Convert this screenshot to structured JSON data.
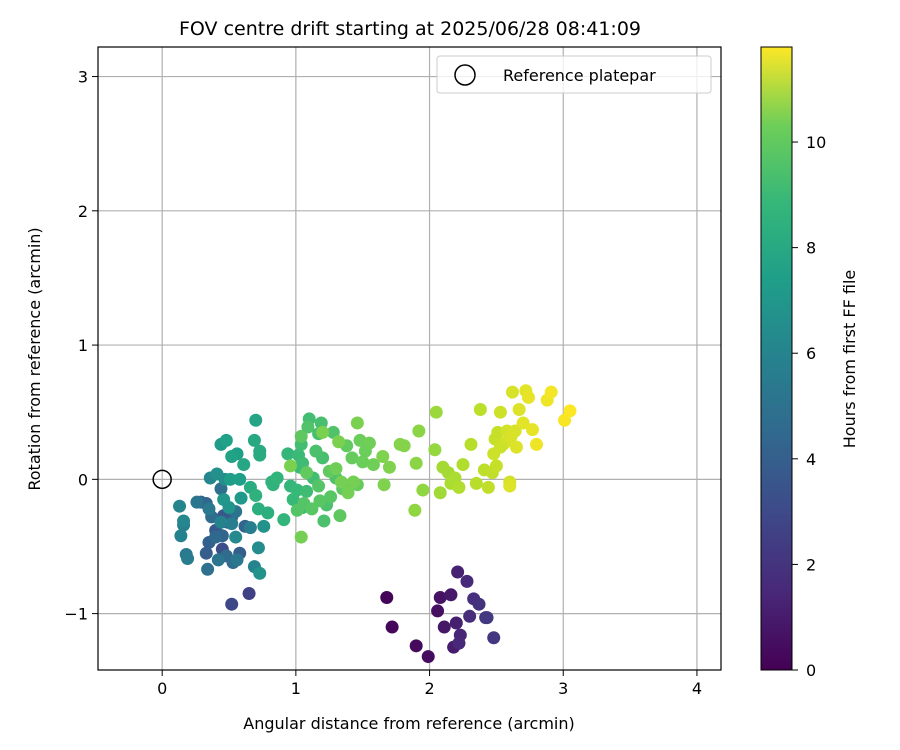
{
  "chart_data": {
    "type": "scatter",
    "title": "FOV centre drift starting at 2025/06/28 08:41:09",
    "xlabel": "Angular distance from reference (arcmin)",
    "ylabel": "Rotation from reference (arcmin)",
    "xlim": [
      -0.48,
      4.18
    ],
    "ylim": [
      -1.42,
      3.22
    ],
    "xticks": [
      0,
      1,
      2,
      3,
      4
    ],
    "yticks": [
      -1,
      0,
      1,
      2,
      3
    ],
    "xtick_labels": [
      "0",
      "1",
      "2",
      "3",
      "4"
    ],
    "ytick_labels": [
      "−1",
      "0",
      "1",
      "2",
      "3"
    ],
    "grid": true,
    "legend": {
      "position": "top-right",
      "entries": [
        {
          "label": "Reference platepar",
          "marker": "open-circle"
        }
      ]
    },
    "reference_point": {
      "x": 0,
      "y": 0
    },
    "colorbar": {
      "label": "Hours from first FF file",
      "colormap": "viridis",
      "range": [
        0,
        11.8
      ],
      "ticks": [
        0,
        2,
        4,
        6,
        8,
        10
      ],
      "tick_labels": [
        "0",
        "2",
        "4",
        "6",
        "8",
        "10"
      ]
    },
    "points": [
      [
        1.68,
        -0.88,
        0.1
      ],
      [
        1.72,
        -1.1,
        0.2
      ],
      [
        1.9,
        -1.24,
        0.3
      ],
      [
        1.99,
        -1.32,
        0.4
      ],
      [
        2.06,
        -0.98,
        0.5
      ],
      [
        2.08,
        -0.88,
        0.6
      ],
      [
        2.11,
        -1.1,
        0.7
      ],
      [
        2.16,
        -0.86,
        0.8
      ],
      [
        2.18,
        -1.25,
        0.9
      ],
      [
        2.2,
        -1.07,
        1.0
      ],
      [
        2.21,
        -0.69,
        1.1
      ],
      [
        2.23,
        -1.16,
        1.2
      ],
      [
        2.22,
        -1.22,
        1.3
      ],
      [
        2.28,
        -0.76,
        1.4
      ],
      [
        2.3,
        -1.02,
        1.5
      ],
      [
        2.33,
        -0.89,
        1.6
      ],
      [
        2.37,
        -0.93,
        1.7
      ],
      [
        2.42,
        -1.03,
        1.8
      ],
      [
        2.48,
        -1.18,
        1.9
      ],
      [
        2.43,
        -1.03,
        2.0
      ],
      [
        0.65,
        -0.85,
        2.3
      ],
      [
        0.52,
        -0.93,
        2.6
      ],
      [
        0.45,
        -0.52,
        2.8
      ],
      [
        0.49,
        -0.32,
        3.0
      ],
      [
        0.46,
        -0.27,
        3.2
      ],
      [
        0.4,
        -0.38,
        3.3
      ],
      [
        0.52,
        -0.28,
        3.4
      ],
      [
        0.33,
        -0.55,
        3.5
      ],
      [
        0.58,
        -0.55,
        3.5
      ],
      [
        0.35,
        -0.47,
        3.6
      ],
      [
        0.29,
        -0.17,
        3.7
      ],
      [
        0.45,
        -0.42,
        3.8
      ],
      [
        0.62,
        -0.35,
        3.8
      ],
      [
        0.33,
        -0.18,
        3.9
      ],
      [
        0.4,
        -0.43,
        4.0
      ],
      [
        0.48,
        -0.57,
        4.1
      ],
      [
        0.37,
        -0.28,
        4.2
      ],
      [
        0.53,
        -0.62,
        4.2
      ],
      [
        0.44,
        -0.07,
        4.3
      ],
      [
        0.34,
        -0.67,
        4.4
      ],
      [
        0.55,
        -0.24,
        4.5
      ],
      [
        0.26,
        -0.17,
        4.6
      ],
      [
        0.42,
        -0.6,
        4.6
      ],
      [
        0.56,
        -0.6,
        4.7
      ],
      [
        0.35,
        -0.22,
        4.8
      ],
      [
        0.18,
        -0.56,
        4.8
      ],
      [
        0.19,
        -0.59,
        4.9
      ],
      [
        0.52,
        -0.33,
        5.0
      ],
      [
        0.66,
        -0.36,
        5.0
      ],
      [
        0.16,
        -0.34,
        5.1
      ],
      [
        0.14,
        -0.42,
        5.2
      ],
      [
        0.69,
        -0.65,
        5.3
      ],
      [
        0.44,
        -0.32,
        5.3
      ],
      [
        0.13,
        -0.2,
        5.4
      ],
      [
        0.16,
        -0.31,
        5.5
      ],
      [
        0.36,
        0.01,
        5.5
      ],
      [
        0.55,
        -0.43,
        5.6
      ],
      [
        0.72,
        -0.51,
        5.7
      ],
      [
        0.47,
        0.0,
        5.8
      ],
      [
        0.41,
        0.04,
        5.9
      ],
      [
        0.73,
        -0.7,
        6.0
      ],
      [
        0.76,
        -0.35,
        6.0
      ],
      [
        0.5,
        -0.21,
        6.1
      ],
      [
        0.46,
        -0.15,
        6.2
      ],
      [
        0.59,
        -0.14,
        6.3
      ],
      [
        0.44,
        0.26,
        6.4
      ],
      [
        0.51,
        0.0,
        6.5
      ],
      [
        0.56,
        0.19,
        6.6
      ],
      [
        0.58,
        0.0,
        6.6
      ],
      [
        0.48,
        0.29,
        6.7
      ],
      [
        0.52,
        0.17,
        6.8
      ],
      [
        0.7,
        0.44,
        6.9
      ],
      [
        0.61,
        0.11,
        7.0
      ],
      [
        0.69,
        0.29,
        7.1
      ],
      [
        0.73,
        0.21,
        7.2
      ],
      [
        0.73,
        0.18,
        7.2
      ],
      [
        0.66,
        -0.06,
        7.3
      ],
      [
        0.72,
        -0.22,
        7.4
      ],
      [
        0.79,
        -0.25,
        7.4
      ],
      [
        0.7,
        -0.12,
        7.5
      ],
      [
        0.82,
        -0.02,
        7.6
      ],
      [
        0.83,
        -0.04,
        7.6
      ],
      [
        0.91,
        -0.3,
        7.7
      ],
      [
        0.86,
        0.01,
        7.7
      ],
      [
        0.94,
        0.19,
        7.8
      ],
      [
        0.96,
        -0.05,
        7.8
      ],
      [
        1.01,
        -0.08,
        7.9
      ],
      [
        0.98,
        -0.15,
        7.9
      ],
      [
        1.02,
        0.18,
        8.0
      ],
      [
        1.03,
        0.09,
        8.0
      ],
      [
        1.05,
        0.12,
        8.1
      ],
      [
        1.05,
        -0.21,
        8.1
      ],
      [
        1.08,
        -0.09,
        8.1
      ],
      [
        1.1,
        0.45,
        8.2
      ],
      [
        1.13,
        0.01,
        8.2
      ],
      [
        1.04,
        0.26,
        8.2
      ],
      [
        1.17,
        0.34,
        8.3
      ],
      [
        1.19,
        0.42,
        8.3
      ],
      [
        1.2,
        0.16,
        8.3
      ],
      [
        1.21,
        -0.31,
        8.4
      ],
      [
        1.23,
        -0.19,
        8.4
      ],
      [
        1.15,
        0.21,
        8.4
      ],
      [
        1.09,
        0.39,
        8.5
      ],
      [
        1.28,
        0.35,
        8.5
      ],
      [
        1.3,
        0.01,
        8.5
      ],
      [
        1.17,
        -0.05,
        8.6
      ],
      [
        1.01,
        -0.23,
        8.6
      ],
      [
        1.06,
        -0.18,
        8.6
      ],
      [
        1.12,
        -0.22,
        8.7
      ],
      [
        1.18,
        -0.16,
        8.7
      ],
      [
        1.26,
        -0.13,
        8.7
      ],
      [
        1.33,
        -0.27,
        8.8
      ],
      [
        1.35,
        -0.07,
        8.8
      ],
      [
        1.04,
        0.32,
        8.8
      ],
      [
        1.08,
        0.05,
        8.9
      ],
      [
        1.25,
        0.06,
        8.9
      ],
      [
        1.38,
        0.25,
        8.9
      ],
      [
        1.42,
        0.16,
        9.0
      ],
      [
        1.46,
        -0.04,
        9.0
      ],
      [
        1.48,
        0.29,
        9.1
      ],
      [
        1.5,
        0.13,
        9.1
      ],
      [
        1.52,
        0.21,
        9.1
      ],
      [
        1.55,
        0.27,
        9.2
      ],
      [
        1.58,
        0.11,
        9.2
      ],
      [
        1.3,
        0.08,
        9.2
      ],
      [
        1.34,
        -0.02,
        9.3
      ],
      [
        1.39,
        -0.1,
        9.3
      ],
      [
        1.43,
        -0.02,
        9.3
      ],
      [
        1.04,
        -0.43,
        9.3
      ],
      [
        0.96,
        0.1,
        9.4
      ],
      [
        1.2,
        0.35,
        9.4
      ],
      [
        1.32,
        0.28,
        9.4
      ],
      [
        1.46,
        0.42,
        9.4
      ],
      [
        1.65,
        0.17,
        9.5
      ],
      [
        1.7,
        0.09,
        9.5
      ],
      [
        1.66,
        -0.04,
        9.5
      ],
      [
        1.78,
        0.26,
        9.6
      ],
      [
        1.81,
        0.25,
        9.6
      ],
      [
        1.9,
        0.12,
        9.7
      ],
      [
        1.92,
        0.36,
        9.7
      ],
      [
        1.89,
        -0.23,
        9.8
      ],
      [
        1.95,
        -0.08,
        9.8
      ],
      [
        2.04,
        0.22,
        9.9
      ],
      [
        2.05,
        0.5,
        10.0
      ],
      [
        2.08,
        -0.1,
        10.1
      ],
      [
        2.1,
        0.09,
        10.2
      ],
      [
        2.14,
        0.05,
        10.2
      ],
      [
        2.16,
        -0.03,
        10.3
      ],
      [
        2.19,
        0.01,
        10.3
      ],
      [
        2.22,
        -0.06,
        10.4
      ],
      [
        2.25,
        0.11,
        10.4
      ],
      [
        2.31,
        0.26,
        10.5
      ],
      [
        2.35,
        -0.03,
        10.5
      ],
      [
        2.38,
        0.52,
        10.6
      ],
      [
        2.41,
        0.07,
        10.6
      ],
      [
        2.44,
        -0.06,
        10.7
      ],
      [
        2.47,
        0.05,
        10.7
      ],
      [
        2.49,
        0.3,
        10.8
      ],
      [
        2.51,
        0.35,
        10.8
      ],
      [
        2.5,
        0.1,
        10.8
      ],
      [
        2.53,
        0.5,
        10.9
      ],
      [
        2.55,
        0.26,
        10.9
      ],
      [
        2.56,
        0.27,
        11.0
      ],
      [
        2.58,
        0.36,
        11.0
      ],
      [
        2.6,
        -0.02,
        11.0
      ],
      [
        2.61,
        0.32,
        11.1
      ],
      [
        2.62,
        0.65,
        11.1
      ],
      [
        2.64,
        0.36,
        11.1
      ],
      [
        2.65,
        0.24,
        11.2
      ],
      [
        2.67,
        0.52,
        11.2
      ],
      [
        2.7,
        0.42,
        11.3
      ],
      [
        2.72,
        0.66,
        11.3
      ],
      [
        2.74,
        0.61,
        11.4
      ],
      [
        2.77,
        0.37,
        11.4
      ],
      [
        2.8,
        0.26,
        11.5
      ],
      [
        2.88,
        0.59,
        11.5
      ],
      [
        2.91,
        0.65,
        11.6
      ],
      [
        3.01,
        0.44,
        11.7
      ],
      [
        3.05,
        0.51,
        11.8
      ],
      [
        2.6,
        -0.05,
        11.2
      ],
      [
        2.53,
        0.24,
        10.9
      ],
      [
        2.48,
        0.19,
        10.9
      ]
    ]
  }
}
